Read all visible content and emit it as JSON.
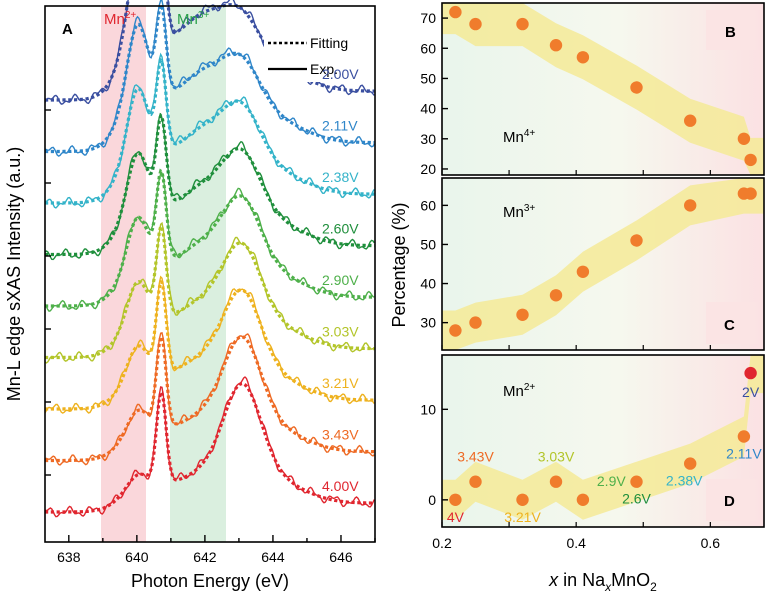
{
  "chart_data": [
    {
      "panel": "A",
      "type": "line",
      "xlabel": "Photon Energy (eV)",
      "ylabel": "Mn-L edge sXAS Intensity (a.u.)",
      "xlim": [
        637.3,
        647.0
      ],
      "xticks": [
        638,
        640,
        642,
        644,
        646
      ],
      "highlight_bands": [
        {
          "label": "Mn2+",
          "main": "Mn",
          "sup": "2+",
          "x_range": [
            639.1,
            640.3
          ],
          "color": "#f7c9cf",
          "label_color": "#e0262f"
        },
        {
          "label": "Mn3+",
          "main": "Mn",
          "sup": "3+",
          "x_range": [
            641.0,
            642.6
          ],
          "color": "#cfead4",
          "label_color": "#2aa04a"
        }
      ],
      "legend": [
        {
          "label": "Fitting",
          "style": "dotted"
        },
        {
          "label": "Exp.",
          "style": "solid"
        }
      ],
      "legend_position": "top-right",
      "series": [
        {
          "name": "2.00V",
          "color": "#3a4fa0",
          "offset": 8
        },
        {
          "name": "2.11V",
          "color": "#2f86c9",
          "offset": 7
        },
        {
          "name": "2.38V",
          "color": "#34b3c9",
          "offset": 6
        },
        {
          "name": "2.60V",
          "color": "#1f8f3c",
          "offset": 5
        },
        {
          "name": "2.90V",
          "color": "#4eb04a",
          "offset": 4
        },
        {
          "name": "3.03V",
          "color": "#b3c52a",
          "offset": 3
        },
        {
          "name": "3.21V",
          "color": "#eeb21f",
          "offset": 2
        },
        {
          "name": "3.43V",
          "color": "#ee6a24",
          "offset": 1
        },
        {
          "name": "4.00V",
          "color": "#e0262f",
          "offset": 0
        }
      ]
    },
    {
      "panel": "B",
      "type": "scatter",
      "annotation": {
        "main": "Mn",
        "sup": "4+"
      },
      "x": [
        0.22,
        0.25,
        0.32,
        0.37,
        0.41,
        0.49,
        0.57,
        0.65,
        0.66
      ],
      "y": [
        72,
        68,
        68,
        61,
        57,
        47,
        36,
        30,
        23
      ],
      "ylim": [
        18,
        75
      ],
      "yticks": [
        20,
        30,
        40,
        50,
        60,
        70
      ],
      "xlim": [
        0.2,
        0.68
      ]
    },
    {
      "panel": "C",
      "type": "scatter",
      "annotation": {
        "main": "Mn",
        "sup": "3+"
      },
      "x": [
        0.22,
        0.25,
        0.32,
        0.37,
        0.41,
        0.49,
        0.57,
        0.65,
        0.66
      ],
      "y": [
        28,
        30,
        32,
        37,
        43,
        51,
        60,
        63,
        63
      ],
      "ylim": [
        23,
        67
      ],
      "yticks": [
        30,
        40,
        50,
        60
      ],
      "xlim": [
        0.2,
        0.68
      ]
    },
    {
      "panel": "D",
      "type": "scatter",
      "annotation": {
        "main": "Mn",
        "sup": "2+"
      },
      "x": [
        0.22,
        0.25,
        0.32,
        0.37,
        0.41,
        0.49,
        0.57,
        0.65,
        0.66
      ],
      "y": [
        0,
        2,
        0,
        2,
        0,
        2,
        4,
        7,
        14
      ],
      "point_labels": [
        "4V",
        "3.43V",
        "3.21V",
        "3.03V",
        "2.9V",
        "2.6V",
        "2.38V",
        "2.11V",
        "2V"
      ],
      "ylim": [
        -3,
        16
      ],
      "yticks": [
        0,
        10
      ],
      "xlim": [
        0.2,
        0.68
      ],
      "xticks": [
        0.2,
        0.4,
        0.6
      ],
      "xlabel_parts": [
        "x",
        " in Na",
        "x",
        "MnO",
        "2"
      ],
      "ylabel": "Percentage (%)"
    }
  ]
}
